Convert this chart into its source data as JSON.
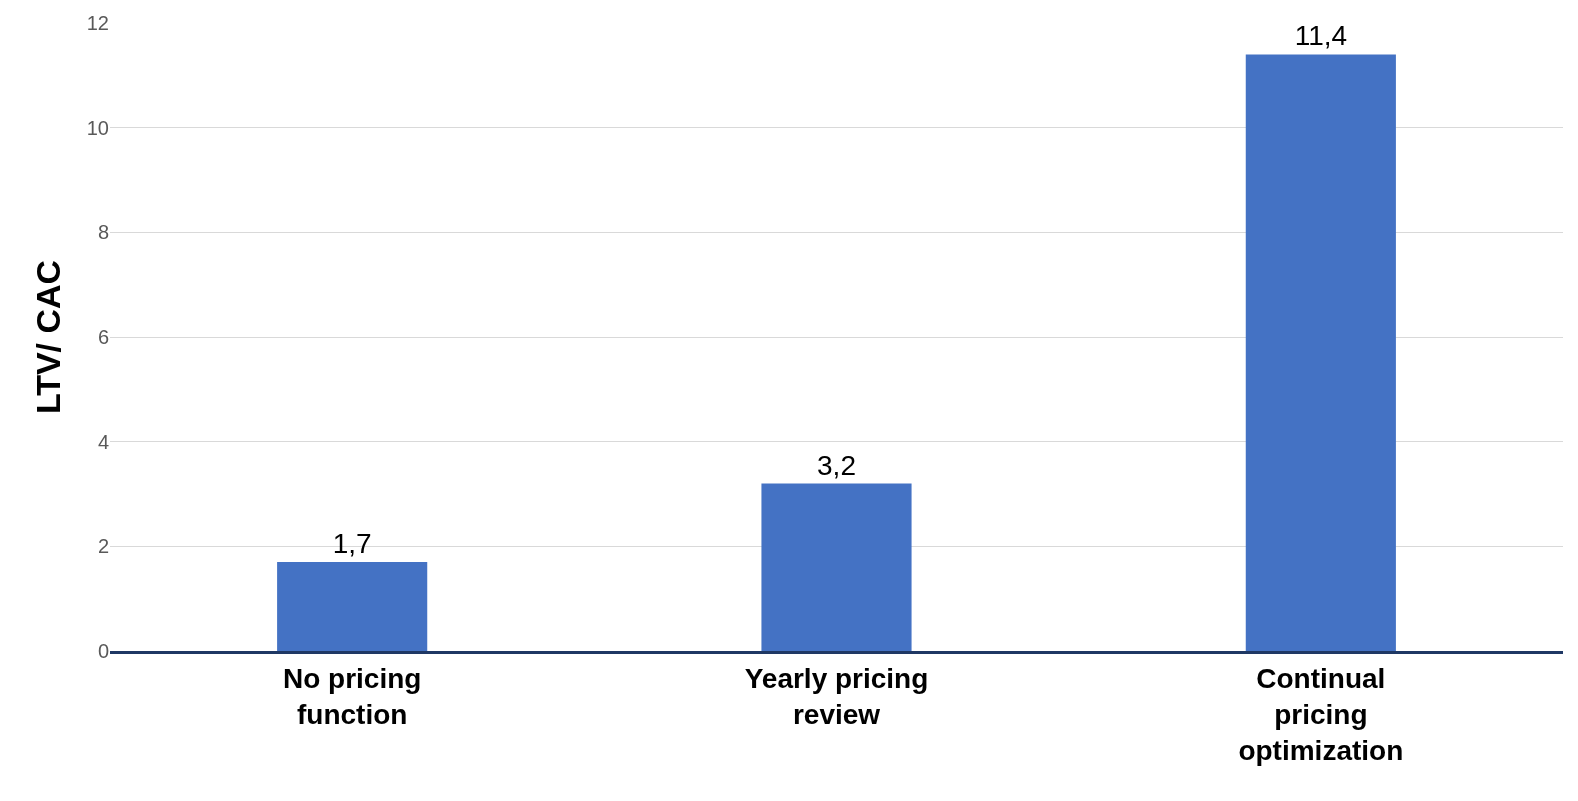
{
  "chart_data": {
    "type": "bar",
    "ylabel": "LTV/ CAC",
    "categories": [
      "No pricing function",
      "Yearly pricing review",
      "Continual pricing optimization"
    ],
    "values": [
      1.7,
      3.2,
      11.4
    ],
    "value_labels": [
      "1,7",
      "3,2",
      "11,4"
    ],
    "color": "#4472c4",
    "ylim": [
      0,
      12
    ],
    "yticks": [
      0,
      2,
      4,
      6,
      8,
      10,
      12
    ],
    "grid": "y"
  }
}
